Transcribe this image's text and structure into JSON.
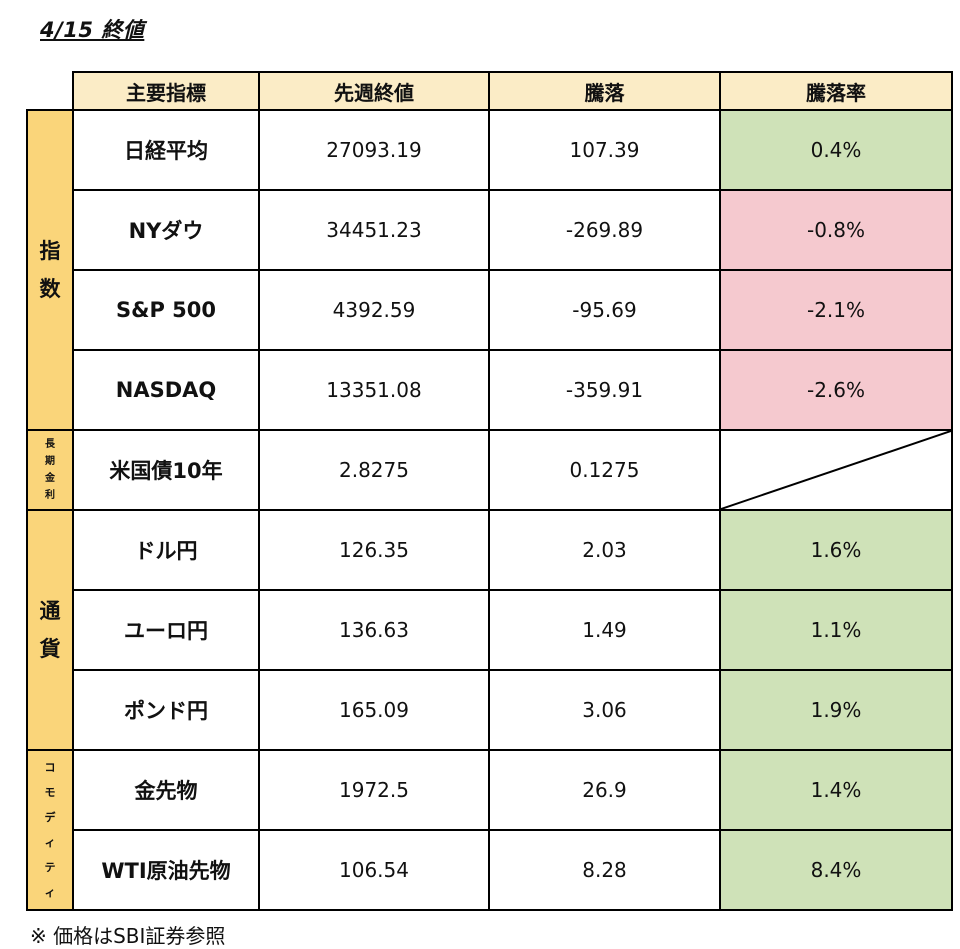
{
  "title": "4/15 終値",
  "headers": [
    "主要指標",
    "先週終値",
    "騰落",
    "騰落率"
  ],
  "categories": {
    "index": "指\n数",
    "rates": "長\n期\n金\n利",
    "fx": "通\n貨",
    "commodity": "コ\nモ\nデ\nィ\nテ\nィ"
  },
  "rows": [
    {
      "name": "日経平均",
      "close": "27093.19",
      "change": "107.39",
      "pct": "0.4%"
    },
    {
      "name": "NYダウ",
      "close": "34451.23",
      "change": "-269.89",
      "pct": "-0.8%"
    },
    {
      "name": "S&P 500",
      "close": "4392.59",
      "change": "-95.69",
      "pct": "-2.1%"
    },
    {
      "name": "NASDAQ",
      "close": "13351.08",
      "change": "-359.91",
      "pct": "-2.6%"
    },
    {
      "name": "米国債10年",
      "close": "2.8275",
      "change": "0.1275",
      "pct": ""
    },
    {
      "name": "ドル円",
      "close": "126.35",
      "change": "2.03",
      "pct": "1.6%"
    },
    {
      "name": "ユーロ円",
      "close": "136.63",
      "change": "1.49",
      "pct": "1.1%"
    },
    {
      "name": "ポンド円",
      "close": "165.09",
      "change": "3.06",
      "pct": "1.9%"
    },
    {
      "name": "金先物",
      "close": "1972.5",
      "change": "26.9",
      "pct": "1.4%"
    },
    {
      "name": "WTI原油先物",
      "close": "106.54",
      "change": "8.28",
      "pct": "8.4%"
    }
  ],
  "note": "※ 価格はSBI証券参照",
  "colors": {
    "positive": "#cfe2b8",
    "negative": "#f5c9cf",
    "category": "#fad57a",
    "header": "#fbecc6"
  }
}
